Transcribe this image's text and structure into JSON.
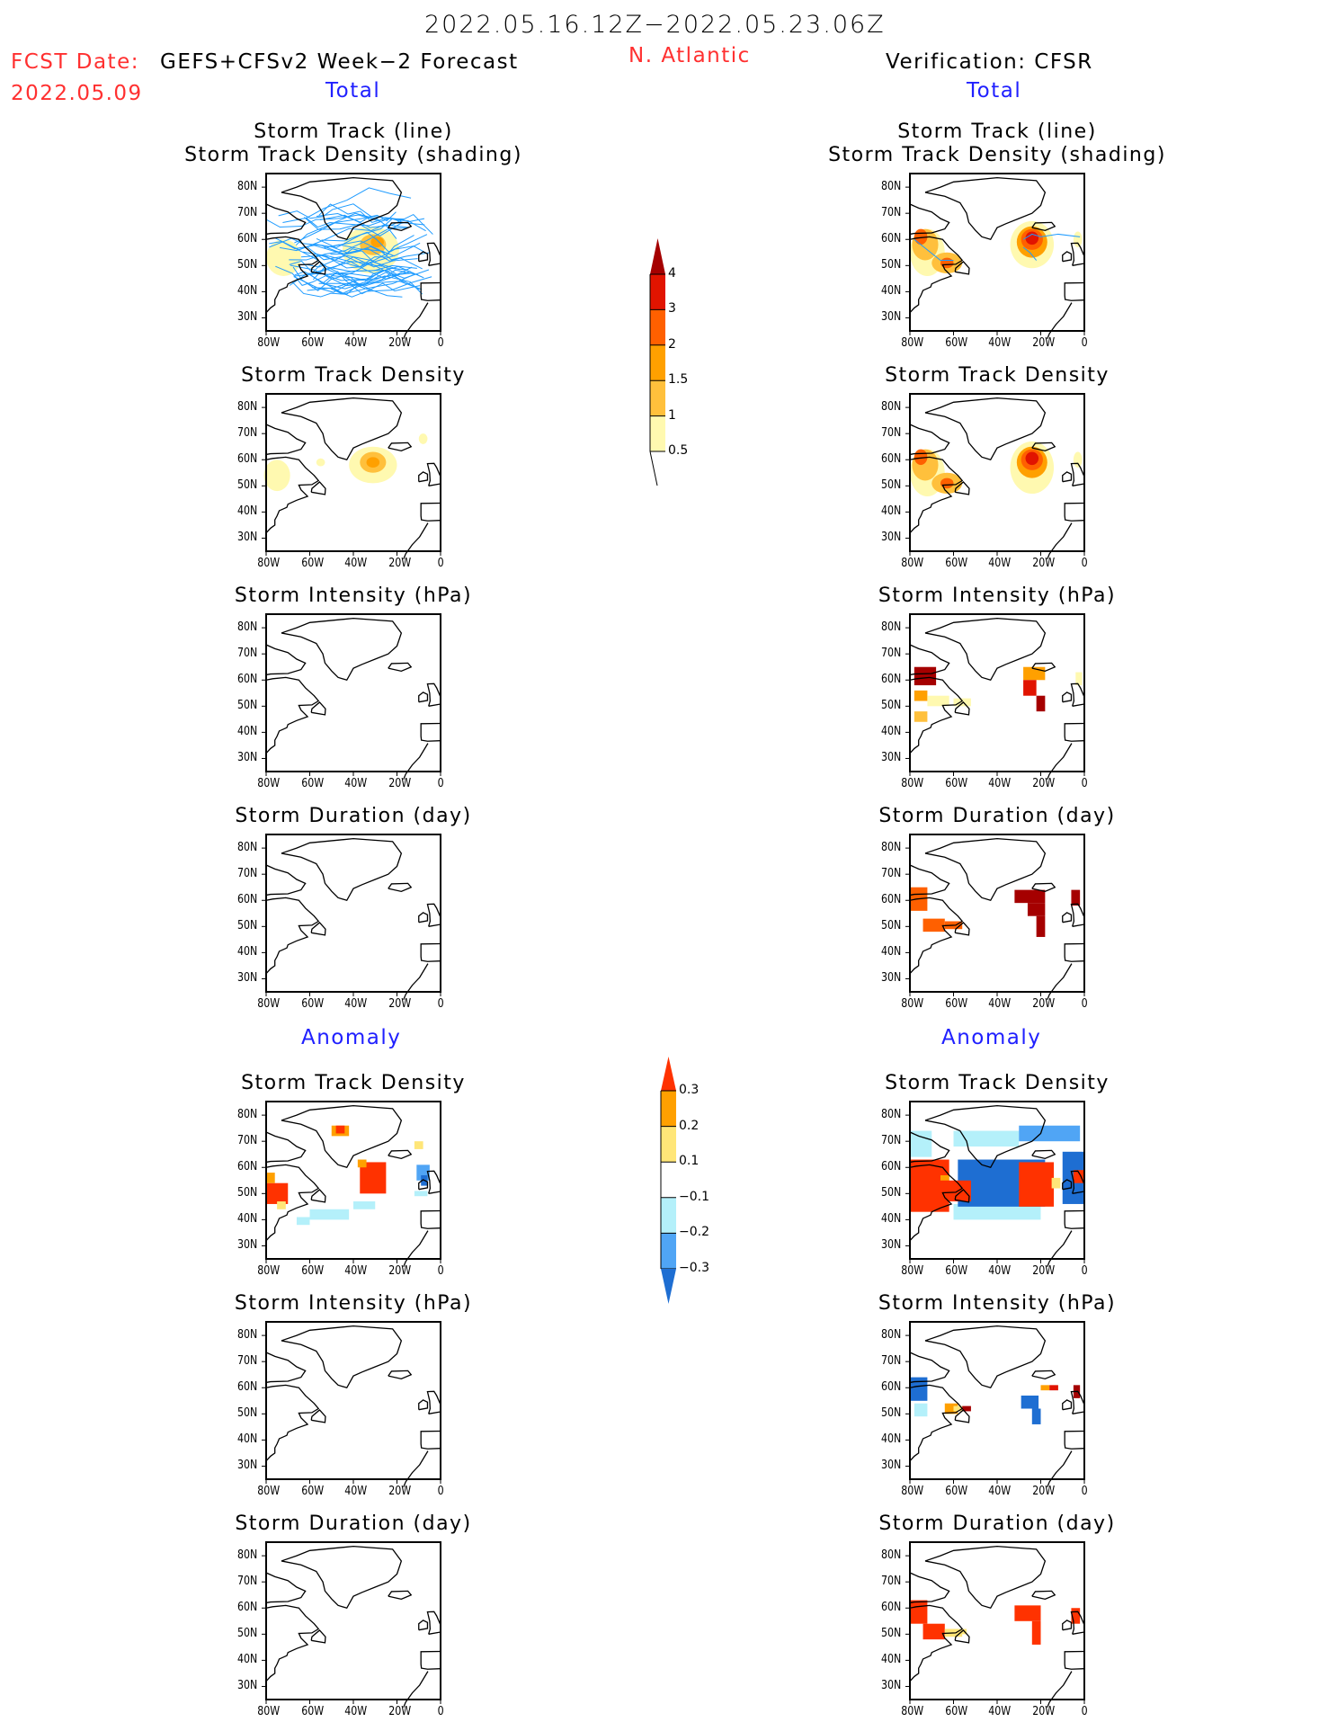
{
  "header": {
    "title": "2022.05.16.12Z−2022.05.23.06Z",
    "fcst_label": "FCST Date:",
    "fcst_model": "GEFS+CFSv2 Week−2 Forecast",
    "fcst_date": "2022.05.09",
    "region": "N. Atlantic",
    "verification": "Verification: CFSR",
    "total_left": "Total",
    "total_right": "Total",
    "anomaly_left": "Anomaly",
    "anomaly_right": "Anomaly"
  },
  "axes": {
    "lat_ticks": [
      "80N",
      "70N",
      "60N",
      "50N",
      "40N",
      "30N"
    ],
    "lat_values": [
      80,
      70,
      60,
      50,
      40,
      30
    ],
    "lon_ticks": [
      "80W",
      "60W",
      "40W",
      "20W",
      "0"
    ],
    "lon_values": [
      -80,
      -60,
      -40,
      -20,
      0
    ]
  },
  "colorbars": {
    "total": {
      "labels": [
        "4",
        "3",
        "2",
        "1.5",
        "1",
        "0.5"
      ],
      "colors": [
        "#a50000",
        "#e11400",
        "#ff6000",
        "#ffa000",
        "#ffc03c",
        "#fff9b0"
      ]
    },
    "anomaly": {
      "labels": [
        "0.3",
        "0.2",
        "0.1",
        "−0.1",
        "−0.2",
        "−0.3"
      ],
      "colors": [
        "#ff3200",
        "#ffa000",
        "#ffe678",
        "#ffffff",
        "#b4f0fa",
        "#50a5f5",
        "#1e6ed2"
      ]
    }
  },
  "chart_data": [
    {
      "type": "heatmap",
      "panel": "forecast-total-track",
      "title": [
        "Storm Track (line)",
        "Storm Track Density (shading)"
      ],
      "note": "forecast tracks concentrated 50-65N, density max ~1.5-2 near 30W 58N"
    },
    {
      "type": "heatmap",
      "panel": "verification-total-track",
      "title": [
        "Storm Track (line)",
        "Storm Track Density (shading)"
      ],
      "note": "density max >3 near 25W 60N and 75W 58N"
    },
    {
      "type": "heatmap",
      "panel": "forecast-total-density",
      "title": [
        "Storm Track Density"
      ]
    },
    {
      "type": "heatmap",
      "panel": "verification-total-density",
      "title": [
        "Storm Track Density"
      ]
    },
    {
      "type": "heatmap",
      "panel": "forecast-total-intensity",
      "title": [
        "Storm Intensity (hPa)"
      ]
    },
    {
      "type": "heatmap",
      "panel": "verification-total-intensity",
      "title": [
        "Storm Intensity (hPa)"
      ]
    },
    {
      "type": "heatmap",
      "panel": "forecast-total-duration",
      "title": [
        "Storm Duration (day)"
      ]
    },
    {
      "type": "heatmap",
      "panel": "verification-total-duration",
      "title": [
        "Storm Duration (day)"
      ]
    },
    {
      "type": "heatmap",
      "panel": "forecast-anomaly-density",
      "title": [
        "Storm Track Density"
      ]
    },
    {
      "type": "heatmap",
      "panel": "verification-anomaly-density",
      "title": [
        "Storm Track Density"
      ]
    },
    {
      "type": "heatmap",
      "panel": "forecast-anomaly-intensity",
      "title": [
        "Storm Intensity (hPa)"
      ]
    },
    {
      "type": "heatmap",
      "panel": "verification-anomaly-intensity",
      "title": [
        "Storm Intensity (hPa)"
      ]
    },
    {
      "type": "heatmap",
      "panel": "forecast-anomaly-duration",
      "title": [
        "Storm Duration (day)"
      ]
    },
    {
      "type": "heatmap",
      "panel": "verification-anomaly-duration",
      "title": [
        "Storm Duration (day)"
      ]
    }
  ]
}
